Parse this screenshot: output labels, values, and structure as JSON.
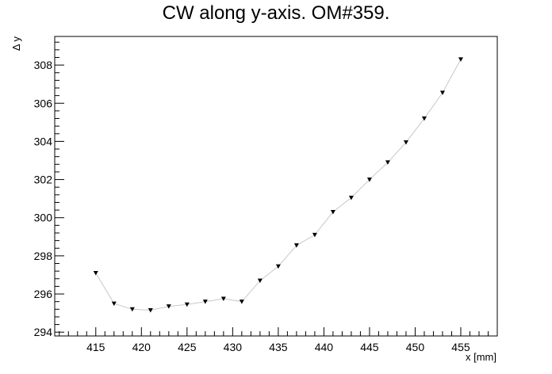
{
  "chart_data": {
    "type": "scatter",
    "title": "CW along y-axis. OM#359.",
    "xlabel": "x [mm]",
    "ylabel": "Δ y",
    "xlim": [
      410.5,
      459
    ],
    "ylim": [
      293.8,
      309.5
    ],
    "x_major_ticks": [
      415,
      420,
      425,
      430,
      435,
      440,
      445,
      450,
      455
    ],
    "y_major_ticks": [
      294,
      296,
      298,
      300,
      302,
      304,
      306,
      308
    ],
    "grid": false,
    "legend": "none",
    "marker": "triangle-down",
    "line_color": "#c8c8c8",
    "marker_color": "#000000",
    "x": [
      415,
      417,
      419,
      421,
      423,
      425,
      427,
      429,
      431,
      433,
      435,
      437,
      439,
      441,
      443,
      445,
      447,
      449,
      451,
      453,
      455
    ],
    "y": [
      297.1,
      295.5,
      295.2,
      295.15,
      295.35,
      295.45,
      295.6,
      295.75,
      295.6,
      296.7,
      297.45,
      298.55,
      299.1,
      300.3,
      301.05,
      302.0,
      302.9,
      303.95,
      305.2,
      306.55,
      308.3
    ]
  }
}
